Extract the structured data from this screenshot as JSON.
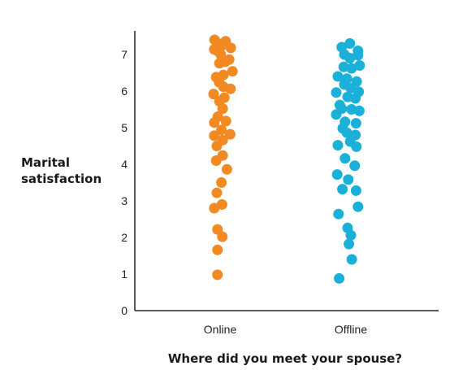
{
  "chart_data": {
    "type": "scatter",
    "title": "",
    "xlabel": "Where did you meet your spouse?",
    "ylabel": "Marital satisfaction",
    "ylim": [
      0,
      7.5
    ],
    "yticks": [
      "0",
      "1",
      "2",
      "3",
      "4",
      "5",
      "6",
      "7"
    ],
    "categories": [
      "Online",
      "Offline"
    ],
    "grid": false,
    "legend": "none",
    "series": [
      {
        "category": "Online",
        "color": "#f28a24",
        "points": [
          {
            "j": -0.17,
            "y": 7.4
          },
          {
            "j": 0.17,
            "y": 7.36
          },
          {
            "j": -0.05,
            "y": 7.3
          },
          {
            "j": 0.05,
            "y": 7.24
          },
          {
            "j": -0.18,
            "y": 7.14
          },
          {
            "j": 0.33,
            "y": 7.18
          },
          {
            "j": -0.08,
            "y": 7.1
          },
          {
            "j": 0.02,
            "y": 7.0
          },
          {
            "j": 0.28,
            "y": 6.86
          },
          {
            "j": 0.16,
            "y": 6.8
          },
          {
            "j": -0.02,
            "y": 6.76
          },
          {
            "j": 0.38,
            "y": 6.54
          },
          {
            "j": 0.1,
            "y": 6.44
          },
          {
            "j": -0.12,
            "y": 6.38
          },
          {
            "j": -0.03,
            "y": 6.24
          },
          {
            "j": 0.1,
            "y": 6.12
          },
          {
            "j": 0.32,
            "y": 6.06
          },
          {
            "j": -0.2,
            "y": 5.92
          },
          {
            "j": 0.13,
            "y": 5.82
          },
          {
            "j": -0.02,
            "y": 5.72
          },
          {
            "j": 0.08,
            "y": 5.52
          },
          {
            "j": -0.07,
            "y": 5.3
          },
          {
            "j": 0.18,
            "y": 5.18
          },
          {
            "j": -0.18,
            "y": 5.14
          },
          {
            "j": 0.04,
            "y": 4.94
          },
          {
            "j": 0.31,
            "y": 4.82
          },
          {
            "j": -0.18,
            "y": 4.78
          },
          {
            "j": 0.08,
            "y": 4.66
          },
          {
            "j": -0.1,
            "y": 4.5
          },
          {
            "j": 0.08,
            "y": 4.24
          },
          {
            "j": -0.12,
            "y": 4.1
          },
          {
            "j": 0.21,
            "y": 3.86
          },
          {
            "j": 0.04,
            "y": 3.5
          },
          {
            "j": -0.1,
            "y": 3.22
          },
          {
            "j": 0.06,
            "y": 2.9
          },
          {
            "j": -0.18,
            "y": 2.8
          },
          {
            "j": -0.08,
            "y": 2.22
          },
          {
            "j": 0.07,
            "y": 2.02
          },
          {
            "j": -0.08,
            "y": 1.66
          },
          {
            "j": -0.08,
            "y": 0.98
          }
        ]
      },
      {
        "category": "Offline",
        "color": "#1ab0d8",
        "points": [
          {
            "j": -0.03,
            "y": 7.3
          },
          {
            "j": -0.28,
            "y": 7.2
          },
          {
            "j": 0.22,
            "y": 7.1
          },
          {
            "j": -0.2,
            "y": 7.0
          },
          {
            "j": 0.22,
            "y": 6.98
          },
          {
            "j": -0.03,
            "y": 6.9
          },
          {
            "j": -0.22,
            "y": 6.66
          },
          {
            "j": 0.27,
            "y": 6.7
          },
          {
            "j": 0.02,
            "y": 6.62
          },
          {
            "j": -0.4,
            "y": 6.4
          },
          {
            "j": -0.12,
            "y": 6.34
          },
          {
            "j": 0.18,
            "y": 6.26
          },
          {
            "j": -0.2,
            "y": 6.18
          },
          {
            "j": 0.0,
            "y": 6.08
          },
          {
            "j": 0.24,
            "y": 5.98
          },
          {
            "j": -0.45,
            "y": 5.96
          },
          {
            "j": -0.1,
            "y": 5.84
          },
          {
            "j": 0.14,
            "y": 5.8
          },
          {
            "j": -0.34,
            "y": 5.62
          },
          {
            "j": -0.28,
            "y": 5.52
          },
          {
            "j": 0.02,
            "y": 5.5
          },
          {
            "j": 0.26,
            "y": 5.46
          },
          {
            "j": -0.45,
            "y": 5.36
          },
          {
            "j": -0.18,
            "y": 5.16
          },
          {
            "j": 0.16,
            "y": 5.12
          },
          {
            "j": -0.25,
            "y": 4.98
          },
          {
            "j": -0.12,
            "y": 4.86
          },
          {
            "j": 0.14,
            "y": 4.8
          },
          {
            "j": -0.02,
            "y": 4.62
          },
          {
            "j": -0.4,
            "y": 4.52
          },
          {
            "j": 0.17,
            "y": 4.48
          },
          {
            "j": -0.18,
            "y": 4.16
          },
          {
            "j": 0.12,
            "y": 3.96
          },
          {
            "j": -0.42,
            "y": 3.72
          },
          {
            "j": -0.08,
            "y": 3.58
          },
          {
            "j": -0.26,
            "y": 3.32
          },
          {
            "j": 0.16,
            "y": 3.28
          },
          {
            "j": 0.22,
            "y": 2.84
          },
          {
            "j": -0.38,
            "y": 2.64
          },
          {
            "j": -0.1,
            "y": 2.26
          },
          {
            "j": 0.0,
            "y": 2.06
          },
          {
            "j": -0.06,
            "y": 1.82
          },
          {
            "j": 0.03,
            "y": 1.4
          },
          {
            "j": -0.36,
            "y": 0.88
          }
        ]
      }
    ]
  }
}
